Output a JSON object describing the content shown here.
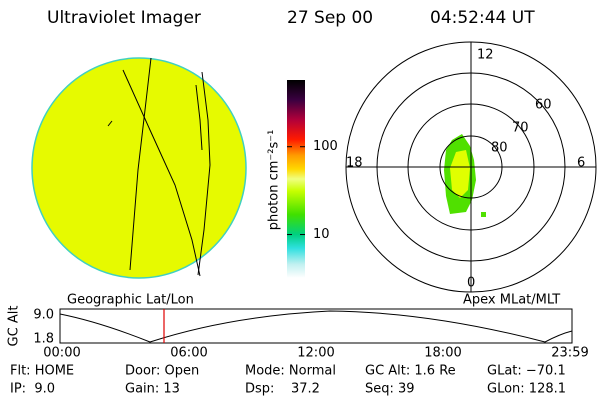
{
  "header": {
    "instrument": "Ultraviolet Imager",
    "date": "27 Sep 00",
    "time": "04:52:44 UT"
  },
  "colorbar": {
    "label": "photon cm⁻²s⁻¹",
    "range": [
      3.2,
      575
    ],
    "ticks": [
      10,
      100
    ],
    "log": true
  },
  "polar": {
    "mlt_labels": [
      "12",
      "6",
      "0",
      "18"
    ],
    "lat_labels": [
      "60",
      "70",
      "80"
    ]
  },
  "captions": {
    "left": "Geographic Lat/Lon",
    "right": "Apex MLat/MLT"
  },
  "altitude": {
    "ylabel": "GC Alt",
    "yticks": [
      "9.0",
      "1.8"
    ],
    "xticks": [
      "00:00",
      "06:00",
      "12:00",
      "18:00",
      "23:59"
    ]
  },
  "footer": {
    "rows": [
      [
        "Flt: HOME",
        "Door: Open",
        "Mode: Normal",
        "GC Alt: 1.6 Re",
        "GLat: −70.1"
      ],
      [
        "IP:  9.0",
        "Gain: 13",
        "Dsp:    37.2",
        "Seq: 39",
        "GLon: 128.1"
      ]
    ]
  }
}
